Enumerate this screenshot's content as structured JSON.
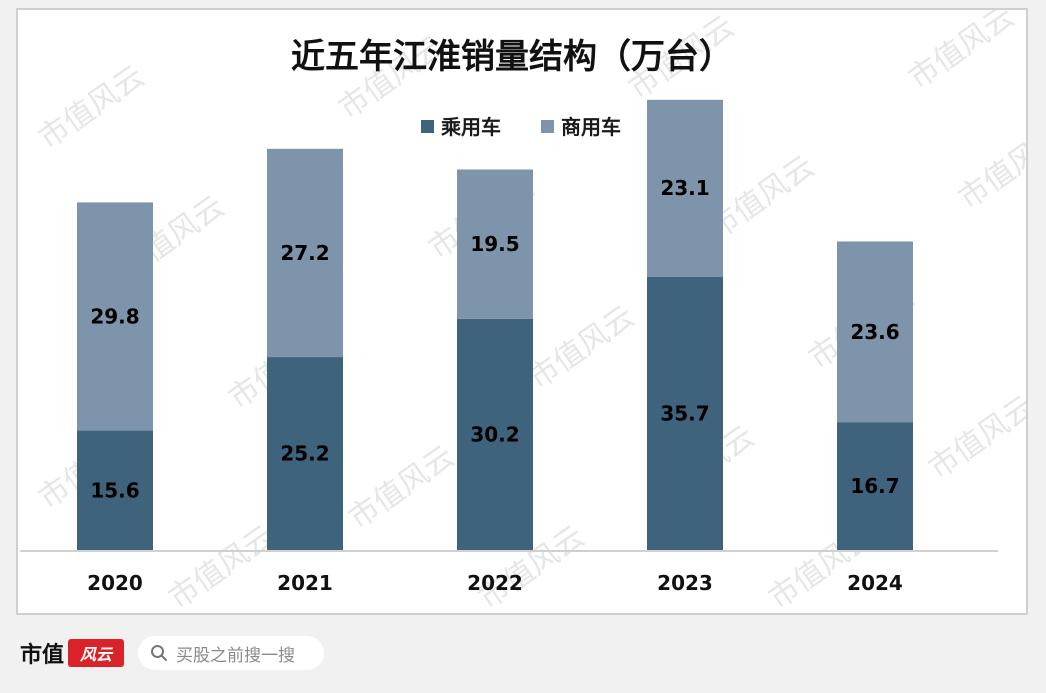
{
  "chart_data": {
    "type": "bar",
    "stacked": true,
    "title": "近五年江淮销量结构（万台）",
    "categories": [
      "2020",
      "2021",
      "2022",
      "2023",
      "2024"
    ],
    "series": [
      {
        "name": "乘用车",
        "values": [
          15.6,
          25.2,
          30.2,
          35.7,
          16.7
        ],
        "color": "#3f627d"
      },
      {
        "name": "商用车",
        "values": [
          29.8,
          27.2,
          19.5,
          23.1,
          23.6
        ],
        "color": "#7e94ab"
      }
    ],
    "ylim": [
      0,
      64
    ],
    "grid": false,
    "legend_position": "top-center",
    "data_labels": true
  },
  "watermark": {
    "text": "市值风云"
  },
  "footer": {
    "brand_text": "市值",
    "brand_seal": "风云",
    "search_placeholder": "买股之前搜一搜",
    "search_icon": "search-icon"
  }
}
